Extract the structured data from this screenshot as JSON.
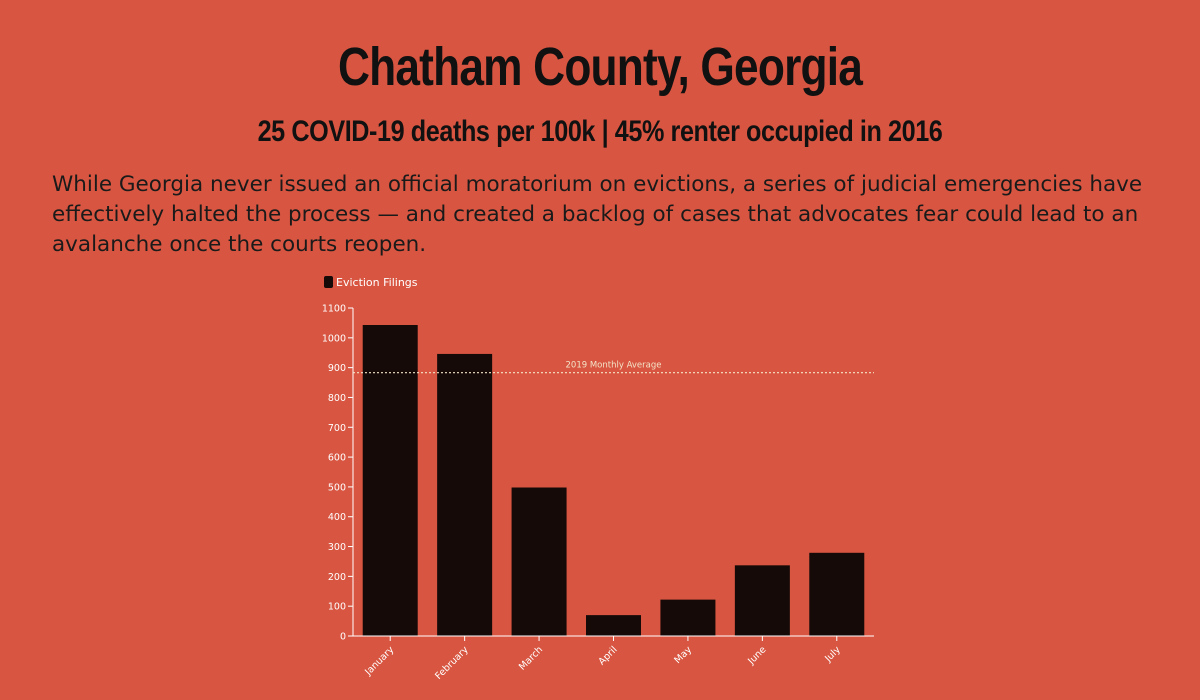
{
  "header": {
    "title": "Chatham County, Georgia",
    "subtitle": "25 COVID-19 deaths per 100k | 45% renter occupied in 2016",
    "description": "While Georgia never issued an official moratorium on evictions, a series of judicial emergencies have effectively halted the process — and created a backlog of cases that advocates fear could lead to an avalanche once the courts reopen."
  },
  "chart_data": {
    "type": "bar",
    "categories": [
      "January",
      "February",
      "March",
      "April",
      "May",
      "June",
      "July"
    ],
    "series": [
      {
        "name": "Eviction Filings",
        "values": [
          1043,
          946,
          498,
          70,
          122,
          237,
          279
        ]
      }
    ],
    "ylim": [
      0,
      1100
    ],
    "yticks": [
      0,
      100,
      200,
      300,
      400,
      500,
      600,
      700,
      800,
      900,
      1000,
      1100
    ],
    "reference_line": {
      "label": "2019 Monthly Average",
      "value": 883
    },
    "legend_position": "top-left",
    "grid": false,
    "colors": {
      "bar": "#150a08",
      "axis": "#ffffff",
      "reference_line": "#f3e3c8"
    }
  }
}
